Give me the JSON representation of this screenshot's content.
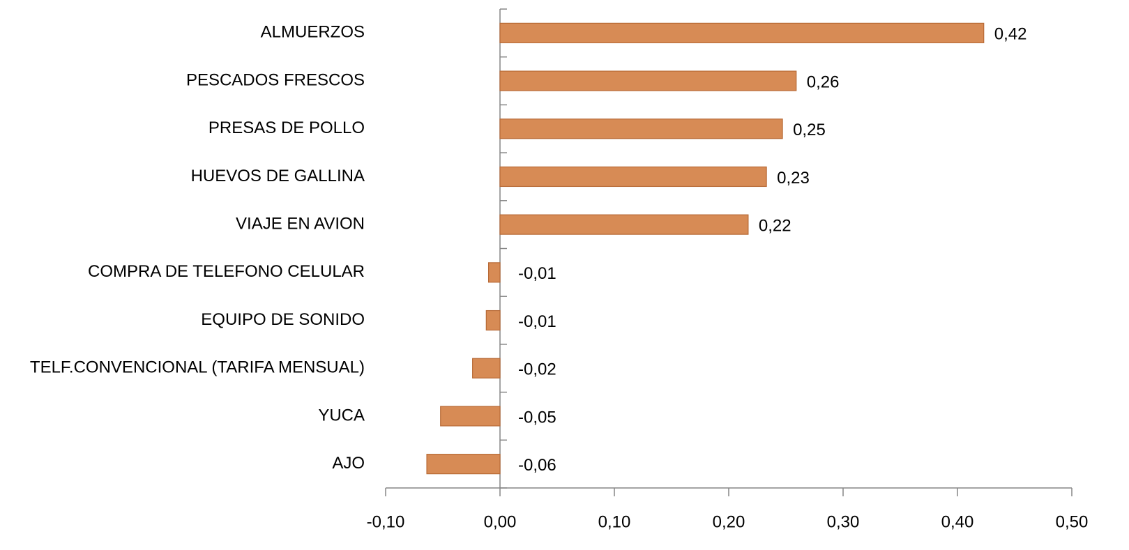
{
  "chart_data": {
    "type": "barh",
    "categories": [
      "ALMUERZOS",
      "PESCADOS FRESCOS",
      "PRESAS DE POLLO",
      "HUEVOS DE GALLINA",
      "VIAJE EN AVION",
      "COMPRA DE TELEFONO CELULAR",
      "EQUIPO DE SONIDO",
      "TELF.CONVENCIONAL (TARIFA MENSUAL)",
      "YUCA",
      "AJO"
    ],
    "values": [
      0.423,
      0.259,
      0.247,
      0.233,
      0.217,
      -0.01,
      -0.012,
      -0.024,
      -0.052,
      -0.064
    ],
    "value_labels": [
      "0,42",
      "0,26",
      "0,25",
      "0,23",
      "0,22",
      "-0,01",
      "-0,01",
      "-0,02",
      "-0,05",
      "-0,06"
    ],
    "color": "#d78b55",
    "xlim": [
      -0.1,
      0.5
    ],
    "xticks": [
      {
        "value": -0.1,
        "label": "-0,10"
      },
      {
        "value": 0,
        "label": "0,00"
      },
      {
        "value": 0.1,
        "label": "0,10"
      },
      {
        "value": 0.2,
        "label": "0,20"
      },
      {
        "value": 0.3,
        "label": "0,30"
      },
      {
        "value": 0.4,
        "label": "0,40"
      },
      {
        "value": 0.5,
        "label": "0,50"
      }
    ],
    "grid": false
  }
}
